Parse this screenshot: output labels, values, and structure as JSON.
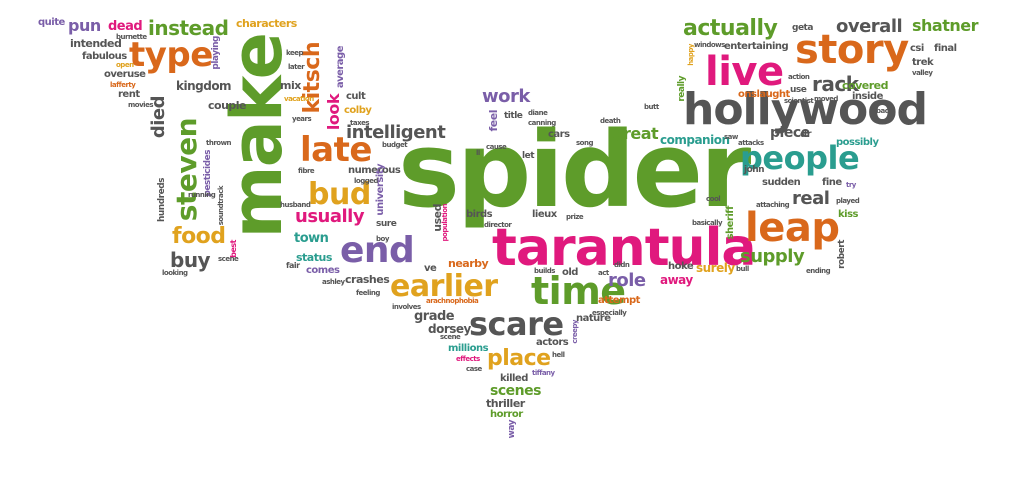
{
  "colors": {
    "green": "#5e9c2a",
    "orange": "#d9681b",
    "pink": "#e0197d",
    "gray": "#555555",
    "teal": "#2a9d8f",
    "yellow": "#e0a21e",
    "purple": "#7a5ea8"
  },
  "words": {
    "spider": "spider",
    "make": "make",
    "tarantula": "tarantula",
    "hollywood": "hollywood",
    "story": "story",
    "live": "live",
    "leap": "leap",
    "time": "time",
    "people": "people",
    "scare": "scare",
    "end": "end",
    "late": "late",
    "type": "type",
    "earlier": "earlier",
    "bud": "bud",
    "steven": "steven",
    "actually": "actually",
    "kitsch": "kitsch",
    "food": "food",
    "place": "place",
    "instead": "instead",
    "overall": "overall",
    "shatner": "shatner",
    "rack": "rack",
    "intelligent": "intelligent",
    "work": "work",
    "usually": "usually",
    "supply": "supply",
    "role": "role",
    "buy": "buy",
    "real": "real",
    "died": "died",
    "look": "look",
    "great": "great",
    "pun": "pun",
    "dead": "dead",
    "companion": "companion",
    "piece": "piece",
    "town": "town",
    "quite": "quite",
    "characters": "characters",
    "intended": "intended",
    "fabulous": "fabulous",
    "kingdom": "kingdom",
    "couple": "couple",
    "overuse": "overuse",
    "rent": "rent",
    "scenes": "scenes",
    "thriller": "thriller",
    "horror": "horror",
    "grade": "grade",
    "dorsey": "dorsey",
    "millions": "millions",
    "killed": "killed",
    "actors": "actors",
    "nature": "nature",
    "attempt": "attempt",
    "status": "status",
    "comes": "comes",
    "crashes": "crashes",
    "numerous": "numerous",
    "birds": "birds",
    "nearby": "nearby",
    "cars": "cars",
    "feel": "feel",
    "sudden": "sudden",
    "fine": "fine",
    "john": "john",
    "sheriff": "sheriff",
    "robert": "robert",
    "kiss": "kiss",
    "covered": "covered",
    "inside": "inside",
    "trek": "trek",
    "final": "final",
    "csi": "csi",
    "onslaught": "onslaught",
    "entertaining": "entertaining",
    "possibly": "possibly",
    "hoke": "hoke",
    "surely": "surely",
    "away": "away",
    "old": "old",
    "lieux": "lieux",
    "ve": "ve",
    "used": "used",
    "arachnophobia": "arachnophobia",
    "pesticides": "pesticides",
    "hundreds": "hundreds",
    "university": "university",
    "let": "let",
    "dr": "dr",
    "mix": "mix",
    "playing": "playing",
    "lafferty": "lafferty",
    "burnette": "burnette",
    "movies": "movies",
    "cult": "cult",
    "colby": "colby",
    "average": "average",
    "later": "later",
    "keep": "keep",
    "fibre": "fibre",
    "husband": "husband",
    "title": "title",
    "sure": "sure",
    "budget": "budget",
    "song": "song",
    "prize": "prize",
    "director": "director",
    "population": "population",
    "builds": "builds",
    "didn": "didn",
    "act": "act",
    "bull": "bull",
    "played": "played",
    "attaching": "attaching",
    "cool": "cool",
    "ending": "ending",
    "try": "try",
    "bad": "bad",
    "valley": "valley",
    "scientist": "scientist",
    "action": "action",
    "geta": "geta",
    "windows": "windows",
    "happy": "happy",
    "really": "really",
    "butt": "butt",
    "saw": "saw",
    "attacks": "attacks",
    "especially": "especially",
    "tiffany": "tiffany",
    "hell": "hell",
    "case": "case",
    "effects": "effects",
    "scene": "scene",
    "involves": "involves",
    "feeling": "feeling",
    "ashley": "ashley",
    "fair": "fair",
    "boy": "boy",
    "best": "best",
    "looking": "looking",
    "soundtrack": "soundtrack",
    "thrown": "thrown",
    "creepy": "creepy",
    "way": "way",
    "basically": "basically",
    "death": "death",
    "canning": "canning",
    "diane": "diane",
    "cause": "cause",
    "ll": "ll",
    "years": "years",
    "vacation": "vacation",
    "taxes": "taxes",
    "logged": "logged",
    "open": "open",
    "use": "use",
    "moved": "moved",
    "running": "running"
  }
}
